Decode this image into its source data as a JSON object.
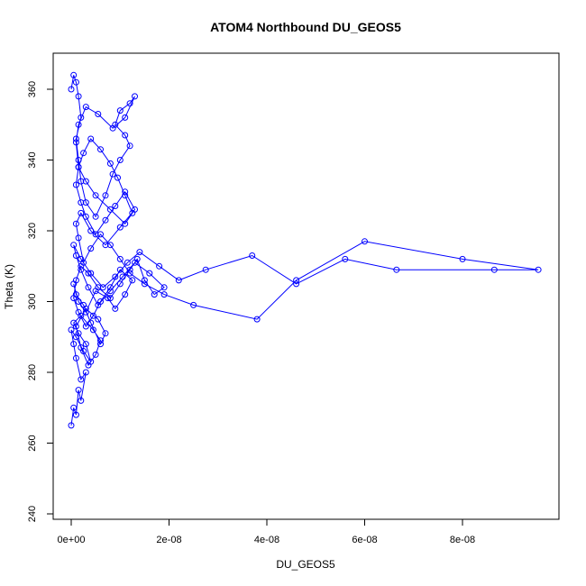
{
  "chart_data": {
    "type": "scatter",
    "title": "ATOM4 Northbound DU_GEOS5",
    "xlabel": "DU_GEOS5",
    "ylabel": "Theta (K)",
    "xlim": [
      0,
      9.6e-08
    ],
    "ylim": [
      240,
      367
    ],
    "x_ticks": [
      {
        "value": 0,
        "label": "0e+00"
      },
      {
        "value": 2e-08,
        "label": "2e-08"
      },
      {
        "value": 4e-08,
        "label": "4e-08"
      },
      {
        "value": 6e-08,
        "label": "6e-08"
      },
      {
        "value": 8e-08,
        "label": "8e-08"
      }
    ],
    "y_ticks": [
      {
        "value": 240,
        "label": "240"
      },
      {
        "value": 260,
        "label": "260"
      },
      {
        "value": 280,
        "label": "280"
      },
      {
        "value": 300,
        "label": "300"
      },
      {
        "value": 320,
        "label": "320"
      },
      {
        "value": 340,
        "label": "340"
      },
      {
        "value": 360,
        "label": "360"
      }
    ],
    "grid": false,
    "color": "#0000ff",
    "marker": "open-circle",
    "connected": true,
    "series": [
      {
        "x": [
          0.0,
          5e-10,
          1e-09,
          1.5e-09,
          2e-09,
          3e-09,
          2e-09,
          1e-09,
          5e-10,
          0.0,
          1e-09,
          2.5e-09,
          4e-09,
          3e-09,
          1.5e-09,
          5e-10,
          2e-09,
          4.5e-09,
          6e-09,
          5e-09,
          3.5e-09,
          2e-09,
          1e-09,
          3e-09,
          5.5e-09,
          7e-09,
          6e-09,
          4e-09,
          2.5e-09,
          1e-09,
          5e-10,
          1.5e-09,
          3e-09,
          5e-09,
          7.5e-09,
          9e-09,
          1.1e-08,
          1.25e-08,
          1e-08,
          8e-09,
          6e-09,
          4.5e-09,
          3e-09,
          1.5e-09,
          5e-10,
          1e-09,
          2e-09,
          3.5e-09,
          5.5e-09,
          8e-09,
          1e-08,
          1.2e-08,
          1.35e-08,
          1.5e-08,
          1.7e-08,
          1.9e-08,
          1.6e-08,
          1.3e-08,
          1.05e-08,
          8e-09,
          5.5e-09,
          3.5e-09,
          2e-09,
          1e-09,
          5e-10,
          2e-09,
          4e-09,
          6.5e-09,
          9e-09,
          1.15e-08,
          1.4e-08,
          1.8e-08,
          2.2e-08,
          2.75e-08,
          3.7e-08,
          4.6e-08,
          5.6e-08,
          6.65e-08,
          8.65e-08,
          9.55e-08,
          8e-08,
          6e-08,
          4.6e-08,
          3.8e-08,
          2.5e-08,
          1.9e-08,
          1.5e-08,
          1.2e-08,
          1e-08,
          8e-09,
          6e-09,
          4e-09,
          2.5e-09,
          1.5e-09,
          1e-09,
          2e-09,
          4e-09,
          7e-09,
          1e-08,
          1.3e-08,
          1.1e-08,
          9e-09,
          7e-09,
          5e-09,
          3e-09,
          2e-09,
          1e-09,
          1.5e-09,
          3e-09,
          5e-09,
          8e-09,
          1.1e-08,
          1.25e-08,
          1.1e-08,
          9.5e-09,
          8e-09,
          6e-09,
          4e-09,
          2.5e-09,
          1.5e-09,
          1e-09,
          1.5e-09,
          3e-09,
          5.5e-09,
          8.5e-09,
          1.1e-08,
          1.3e-08,
          1.2e-08,
          1e-08,
          9e-09,
          1.1e-08,
          1.2e-08,
          1e-08,
          8.5e-09,
          7e-09,
          5e-09,
          3e-09,
          2e-09,
          1.5e-09,
          1e-09,
          2e-09,
          1.5e-09,
          1e-09,
          5e-10,
          0.0
        ],
        "y": [
          265,
          270,
          268,
          275,
          272,
          280,
          278,
          284,
          288,
          292,
          290,
          286,
          283,
          288,
          291,
          294,
          296,
          292,
          289,
          285,
          282,
          287,
          293,
          298,
          295,
          291,
          288,
          294,
          299,
          302,
          305,
          300,
          297,
          303,
          301,
          298,
          302,
          306,
          309,
          304,
          300,
          296,
          293,
          297,
          301,
          306,
          310,
          308,
          304,
          301,
          305,
          309,
          312,
          306,
          302,
          304,
          308,
          311,
          307,
          303,
          299,
          304,
          309,
          313,
          316,
          312,
          308,
          304,
          307,
          311,
          314,
          310,
          306,
          309,
          313,
          305,
          312,
          309,
          309,
          309,
          312,
          317,
          306,
          295,
          299,
          302,
          305,
          308,
          312,
          316,
          319,
          315,
          311,
          318,
          322,
          325,
          320,
          316,
          321,
          326,
          331,
          327,
          323,
          319,
          324,
          328,
          333,
          338,
          334,
          330,
          326,
          322,
          325,
          330,
          335,
          339,
          343,
          346,
          342,
          338,
          345,
          350,
          355,
          353,
          349,
          352,
          358,
          356,
          354,
          350,
          347,
          344,
          340,
          336,
          330,
          324,
          328,
          334,
          340,
          346,
          352,
          358,
          362,
          364,
          360
        ]
      }
    ]
  }
}
